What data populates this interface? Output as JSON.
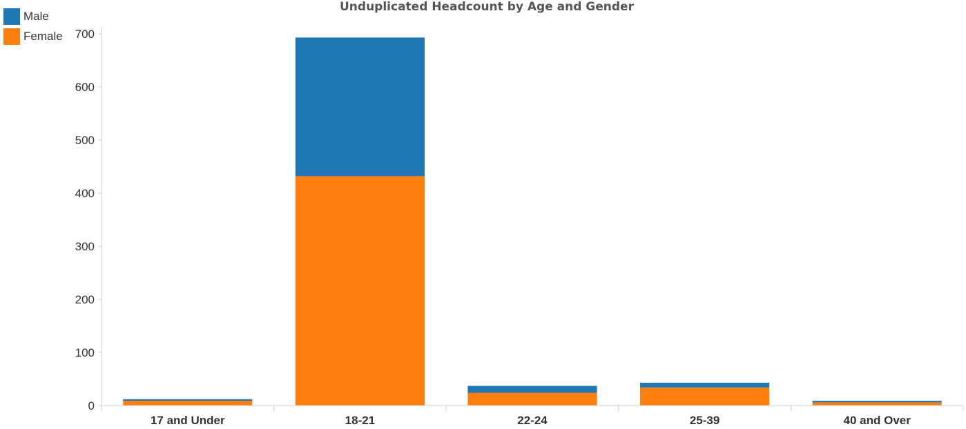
{
  "chart_data": {
    "type": "bar",
    "stacked": true,
    "title": "Unduplicated Headcount by Age and Gender",
    "xlabel": "",
    "ylabel": "",
    "categories": [
      "17 and Under",
      "18-21",
      "22-24",
      "25-39",
      "40 and Over"
    ],
    "series": [
      {
        "name": "Female",
        "color": "#ff7f0e",
        "values": [
          9,
          432,
          24,
          34,
          6
        ]
      },
      {
        "name": "Male",
        "color": "#1f77b4",
        "values": [
          3,
          261,
          13,
          9,
          3
        ]
      }
    ],
    "ylim": [
      0,
      700
    ],
    "yticks": [
      0,
      100,
      200,
      300,
      400,
      500,
      600,
      700
    ],
    "grid": false,
    "legend_position": "top-left"
  },
  "legend": [
    {
      "label": "Male",
      "color": "#1f77b4"
    },
    {
      "label": "Female",
      "color": "#ff7f0e"
    }
  ]
}
